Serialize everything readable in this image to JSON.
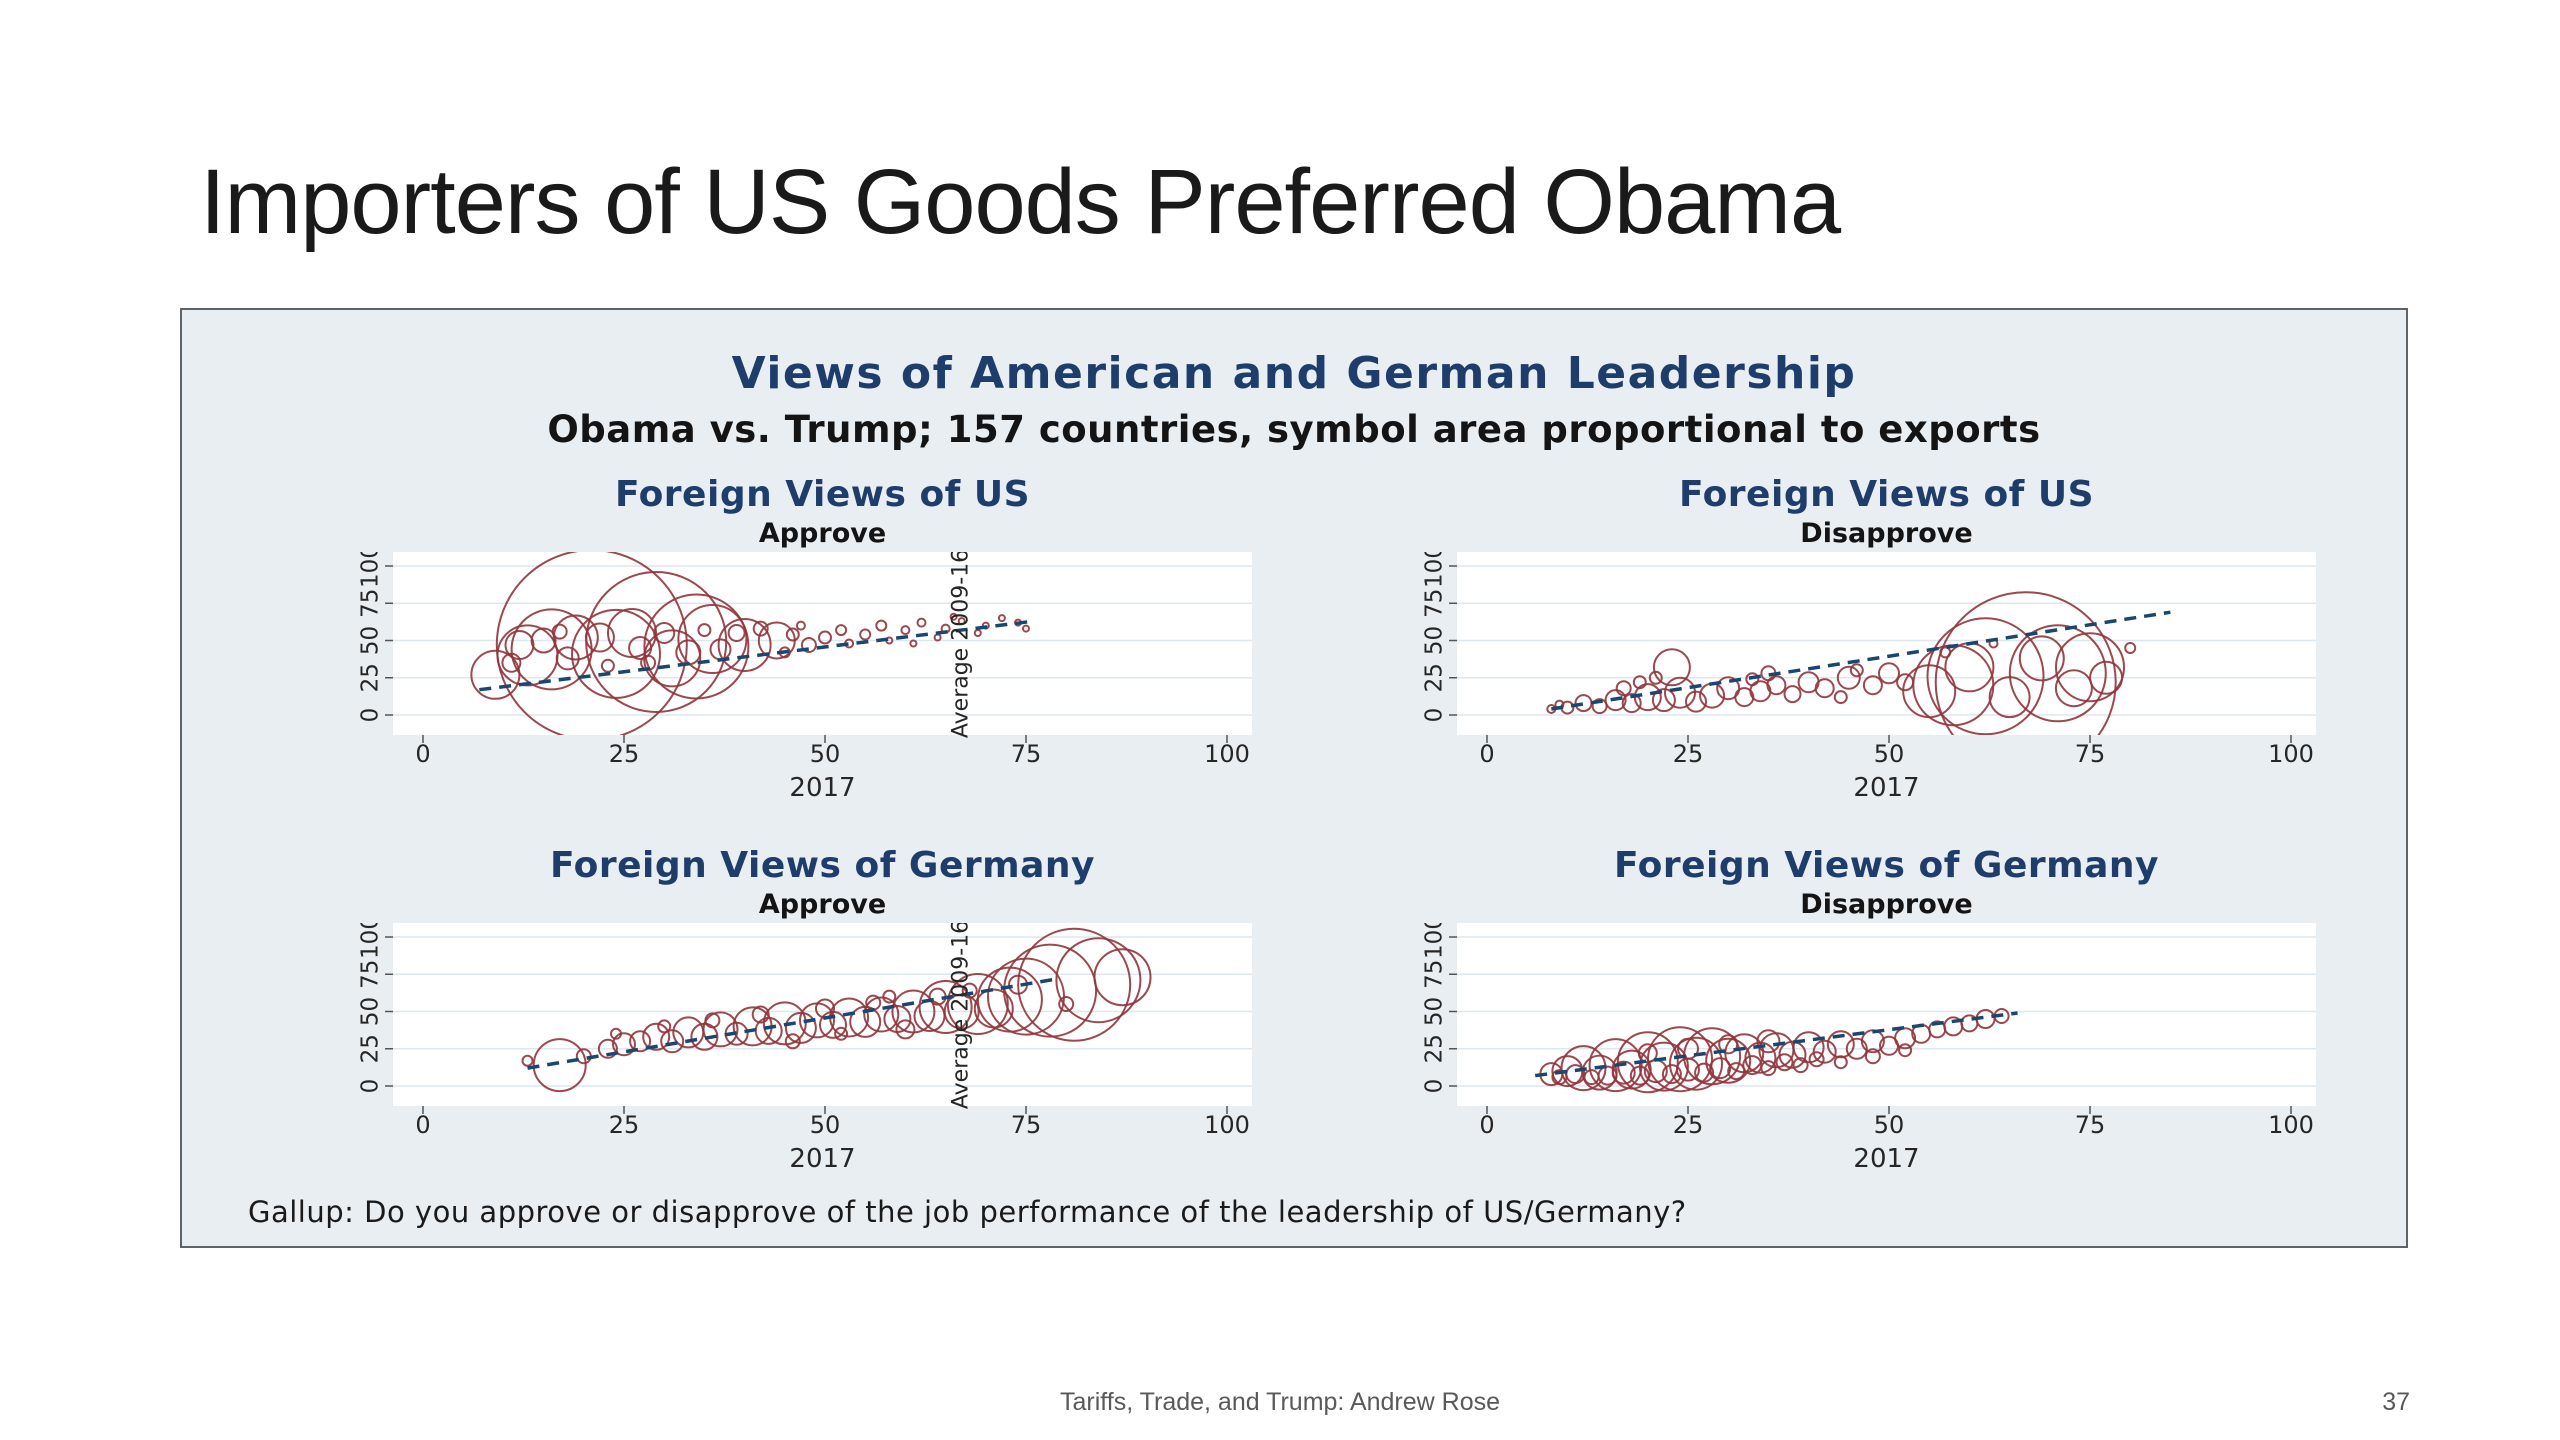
{
  "slide": {
    "title": "Importers of US Goods Preferred Obama",
    "footer": "Tariffs, Trade, and Trump: Andrew Rose",
    "page_number": "37"
  },
  "figure": {
    "title": "Views of American and German Leadership",
    "subtitle": "Obama vs. Trump; 157 countries, symbol area proportional to exports",
    "caption": "Gallup: Do you approve or disapprove of the job performance of the leadership of US/Germany?",
    "colors": {
      "panel_bg": "#e9eef2",
      "plot_bg": "#ffffff",
      "bubble": "#90353b",
      "fit_line": "#1a476f",
      "heading": "#1f3d6b",
      "gridline": "#dde7ee",
      "tick_text": "#262626"
    }
  },
  "chart_data": [
    {
      "type": "scatter",
      "title": "Foreign Views of US",
      "subtitle": "Approve",
      "xlabel": "2017",
      "inner_ylabel": "Average 2009-16",
      "xlim": [
        0,
        100
      ],
      "ylim": [
        0,
        100
      ],
      "x_ticks": [
        0,
        25,
        50,
        75,
        100
      ],
      "y_ticks": [
        0,
        25,
        50,
        75,
        100
      ],
      "fit_line": [
        7,
        17,
        76,
        63
      ],
      "points": [
        [
          21,
          47,
          95
        ],
        [
          29,
          49,
          70
        ],
        [
          34,
          46,
          52
        ],
        [
          24,
          41,
          44
        ],
        [
          16,
          44,
          40
        ],
        [
          13,
          40,
          30
        ],
        [
          36,
          51,
          34
        ],
        [
          40,
          47,
          26
        ],
        [
          31,
          38,
          28
        ],
        [
          26,
          55,
          24
        ],
        [
          19,
          52,
          22
        ],
        [
          44,
          50,
          18
        ],
        [
          9,
          27,
          24
        ],
        [
          12,
          47,
          14
        ],
        [
          15,
          50,
          12
        ],
        [
          18,
          38,
          11
        ],
        [
          22,
          52,
          14
        ],
        [
          27,
          45,
          11
        ],
        [
          30,
          55,
          10
        ],
        [
          33,
          42,
          12
        ],
        [
          37,
          44,
          10
        ],
        [
          39,
          55,
          8
        ],
        [
          42,
          58,
          7
        ],
        [
          46,
          54,
          6
        ],
        [
          48,
          47,
          7
        ],
        [
          50,
          52,
          6
        ],
        [
          52,
          57,
          5
        ],
        [
          55,
          54,
          5
        ],
        [
          57,
          60,
          5
        ],
        [
          60,
          57,
          4
        ],
        [
          62,
          62,
          4
        ],
        [
          65,
          58,
          4
        ],
        [
          67,
          63,
          3
        ],
        [
          70,
          60,
          3
        ],
        [
          72,
          65,
          3
        ],
        [
          74,
          62,
          3
        ],
        [
          47,
          60,
          4
        ],
        [
          53,
          48,
          4
        ],
        [
          58,
          50,
          3
        ],
        [
          45,
          42,
          5
        ],
        [
          35,
          57,
          6
        ],
        [
          28,
          35,
          7
        ],
        [
          23,
          33,
          6
        ],
        [
          17,
          56,
          7
        ],
        [
          11,
          35,
          9
        ],
        [
          64,
          52,
          3
        ],
        [
          69,
          55,
          3
        ],
        [
          75,
          58,
          3
        ],
        [
          61,
          48,
          3
        ],
        [
          66,
          66,
          3
        ]
      ]
    },
    {
      "type": "scatter",
      "title": "Foreign Views of US",
      "subtitle": "Disapprove",
      "xlabel": "2017",
      "inner_ylabel": null,
      "xlim": [
        0,
        100
      ],
      "ylim": [
        0,
        100
      ],
      "x_ticks": [
        0,
        25,
        50,
        75,
        100
      ],
      "y_ticks": [
        0,
        25,
        50,
        75,
        100
      ],
      "fit_line": [
        8,
        4,
        85,
        69
      ],
      "points": [
        [
          10,
          5,
          6
        ],
        [
          12,
          8,
          8
        ],
        [
          14,
          6,
          7
        ],
        [
          16,
          10,
          10
        ],
        [
          18,
          8,
          9
        ],
        [
          20,
          12,
          13
        ],
        [
          22,
          10,
          11
        ],
        [
          24,
          15,
          15
        ],
        [
          26,
          9,
          10
        ],
        [
          28,
          13,
          12
        ],
        [
          30,
          18,
          11
        ],
        [
          32,
          12,
          9
        ],
        [
          34,
          16,
          10
        ],
        [
          36,
          20,
          9
        ],
        [
          38,
          14,
          8
        ],
        [
          40,
          22,
          10
        ],
        [
          42,
          18,
          9
        ],
        [
          45,
          25,
          11
        ],
        [
          48,
          20,
          9
        ],
        [
          50,
          28,
          10
        ],
        [
          52,
          22,
          8
        ],
        [
          23,
          32,
          18
        ],
        [
          58,
          20,
          40
        ],
        [
          62,
          26,
          58
        ],
        [
          67,
          22,
          90
        ],
        [
          71,
          28,
          48
        ],
        [
          75,
          32,
          34
        ],
        [
          65,
          12,
          20
        ],
        [
          69,
          38,
          22
        ],
        [
          73,
          18,
          18
        ],
        [
          77,
          25,
          16
        ],
        [
          60,
          32,
          24
        ],
        [
          55,
          16,
          26
        ],
        [
          80,
          45,
          5
        ],
        [
          57,
          42,
          5
        ],
        [
          63,
          48,
          4
        ],
        [
          46,
          30,
          6
        ],
        [
          44,
          12,
          6
        ],
        [
          35,
          28,
          7
        ],
        [
          33,
          24,
          6
        ],
        [
          8,
          4,
          4
        ],
        [
          9,
          7,
          4
        ],
        [
          17,
          18,
          7
        ],
        [
          19,
          22,
          6
        ],
        [
          21,
          25,
          6
        ]
      ]
    },
    {
      "type": "scatter",
      "title": "Foreign Views of Germany",
      "subtitle": "Approve",
      "xlabel": "2017",
      "inner_ylabel": "Average 2009-16",
      "xlim": [
        0,
        100
      ],
      "ylim": [
        0,
        100
      ],
      "x_ticks": [
        0,
        25,
        50,
        75,
        100
      ],
      "y_ticks": [
        0,
        25,
        50,
        75,
        100
      ],
      "fit_line": [
        13,
        12,
        79,
        72
      ],
      "points": [
        [
          17,
          14,
          26
        ],
        [
          13,
          17,
          5
        ],
        [
          20,
          20,
          7
        ],
        [
          23,
          25,
          9
        ],
        [
          25,
          28,
          11
        ],
        [
          27,
          30,
          10
        ],
        [
          29,
          33,
          13
        ],
        [
          31,
          30,
          11
        ],
        [
          33,
          36,
          15
        ],
        [
          35,
          33,
          13
        ],
        [
          37,
          38,
          17
        ],
        [
          39,
          35,
          11
        ],
        [
          41,
          40,
          19
        ],
        [
          43,
          37,
          13
        ],
        [
          45,
          42,
          21
        ],
        [
          47,
          39,
          15
        ],
        [
          49,
          44,
          17
        ],
        [
          51,
          41,
          13
        ],
        [
          53,
          46,
          19
        ],
        [
          55,
          43,
          15
        ],
        [
          57,
          48,
          17
        ],
        [
          59,
          45,
          13
        ],
        [
          61,
          50,
          21
        ],
        [
          63,
          47,
          15
        ],
        [
          65,
          53,
          26
        ],
        [
          67,
          50,
          17
        ],
        [
          69,
          55,
          30
        ],
        [
          71,
          52,
          19
        ],
        [
          73,
          58,
          32
        ],
        [
          75,
          60,
          38
        ],
        [
          78,
          64,
          46
        ],
        [
          81,
          68,
          56
        ],
        [
          84,
          71,
          42
        ],
        [
          87,
          73,
          28
        ],
        [
          60,
          38,
          9
        ],
        [
          50,
          52,
          9
        ],
        [
          42,
          48,
          8
        ],
        [
          36,
          44,
          7
        ],
        [
          30,
          40,
          6
        ],
        [
          24,
          35,
          5
        ],
        [
          56,
          56,
          7
        ],
        [
          64,
          60,
          8
        ],
        [
          46,
          30,
          7
        ],
        [
          52,
          35,
          6
        ],
        [
          58,
          60,
          6
        ],
        [
          68,
          64,
          7
        ],
        [
          74,
          68,
          9
        ],
        [
          80,
          55,
          7
        ]
      ]
    },
    {
      "type": "scatter",
      "title": "Foreign Views of Germany",
      "subtitle": "Disapprove",
      "xlabel": "2017",
      "inner_ylabel": null,
      "xlim": [
        0,
        100
      ],
      "ylim": [
        0,
        100
      ],
      "x_ticks": [
        0,
        25,
        50,
        75,
        100
      ],
      "y_ticks": [
        0,
        25,
        50,
        75,
        100
      ],
      "fit_line": [
        6,
        7,
        66,
        49
      ],
      "points": [
        [
          8,
          8,
          11
        ],
        [
          10,
          10,
          15
        ],
        [
          12,
          12,
          22
        ],
        [
          14,
          9,
          17
        ],
        [
          16,
          14,
          26
        ],
        [
          18,
          11,
          19
        ],
        [
          20,
          16,
          30
        ],
        [
          22,
          13,
          24
        ],
        [
          24,
          18,
          32
        ],
        [
          26,
          15,
          26
        ],
        [
          28,
          20,
          28
        ],
        [
          30,
          17,
          22
        ],
        [
          32,
          22,
          19
        ],
        [
          34,
          19,
          15
        ],
        [
          36,
          24,
          17
        ],
        [
          38,
          21,
          13
        ],
        [
          40,
          26,
          15
        ],
        [
          42,
          23,
          11
        ],
        [
          44,
          28,
          13
        ],
        [
          46,
          25,
          10
        ],
        [
          48,
          30,
          11
        ],
        [
          50,
          27,
          9
        ],
        [
          52,
          32,
          10
        ],
        [
          54,
          35,
          9
        ],
        [
          56,
          38,
          8
        ],
        [
          58,
          40,
          9
        ],
        [
          60,
          42,
          8
        ],
        [
          62,
          45,
          9
        ],
        [
          64,
          47,
          7
        ],
        [
          9,
          6,
          7
        ],
        [
          11,
          8,
          9
        ],
        [
          13,
          6,
          7
        ],
        [
          15,
          7,
          9
        ],
        [
          17,
          9,
          11
        ],
        [
          19,
          7,
          9
        ],
        [
          21,
          10,
          11
        ],
        [
          23,
          8,
          9
        ],
        [
          25,
          11,
          11
        ],
        [
          27,
          9,
          9
        ],
        [
          29,
          12,
          10
        ],
        [
          31,
          10,
          8
        ],
        [
          33,
          14,
          9
        ],
        [
          35,
          12,
          7
        ],
        [
          37,
          16,
          8
        ],
        [
          39,
          14,
          7
        ],
        [
          41,
          18,
          7
        ],
        [
          35,
          30,
          11
        ],
        [
          30,
          28,
          9
        ],
        [
          25,
          25,
          10
        ],
        [
          20,
          22,
          9
        ],
        [
          48,
          20,
          7
        ],
        [
          52,
          24,
          6
        ],
        [
          44,
          16,
          6
        ]
      ]
    }
  ]
}
